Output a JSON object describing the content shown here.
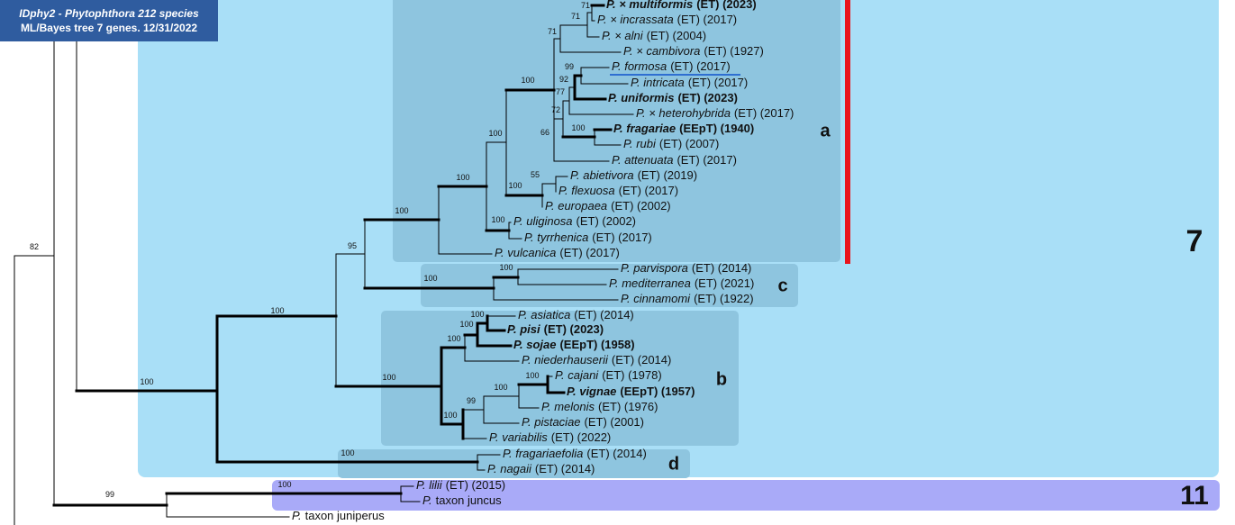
{
  "header": {
    "line1": "IDphy2 - Phytophthora 212 species",
    "line2": "ML/Bayes tree 7 genes. 12/31/2022"
  },
  "clades": {
    "major": [
      "7",
      "11"
    ],
    "sub": [
      "a",
      "c",
      "b",
      "d"
    ]
  },
  "taxa": [
    {
      "name": "P. × multiformis",
      "note": "(ET) (2023)",
      "bold": true
    },
    {
      "name": "P. × incrassata",
      "note": "(ET) (2017)"
    },
    {
      "name": "P. × alni",
      "note": "(ET) (2004)"
    },
    {
      "name": "P. × cambivora",
      "note": "(ET) (1927)"
    },
    {
      "name": "P. formosa",
      "note": "(ET) (2017)",
      "underline": true
    },
    {
      "name": "P. intricata",
      "note": "(ET) (2017)"
    },
    {
      "name": "P. uniformis",
      "note": "(ET) (2023)",
      "bold": true
    },
    {
      "name": "P. × heterohybrida",
      "note": "(ET) (2017)"
    },
    {
      "name": "P. fragariae",
      "note": "(EEpT) (1940)",
      "bold": true
    },
    {
      "name": "P. rubi",
      "note": "(ET) (2007)"
    },
    {
      "name": "P. attenuata",
      "note": "(ET) (2017)"
    },
    {
      "name": "P. abietivora",
      "note": "(ET) (2019)"
    },
    {
      "name": "P. flexuosa",
      "note": "(ET) (2017)"
    },
    {
      "name": "P. europaea",
      "note": "(ET) (2002)"
    },
    {
      "name": "P. uliginosa",
      "note": "(ET) (2002)"
    },
    {
      "name": "P. tyrrhenica",
      "note": "(ET) (2017)"
    },
    {
      "name": "P. vulcanica",
      "note": "(ET) (2017)"
    },
    {
      "name": "P. parvispora",
      "note": "(ET) (2014)"
    },
    {
      "name": "P. mediterranea",
      "note": "(ET) (2021)"
    },
    {
      "name": "P. cinnamomi",
      "note": "(ET) (1922)"
    },
    {
      "name": "P. asiatica",
      "note": "(ET) (2014)"
    },
    {
      "name": "P. pisi",
      "note": "(ET) (2023)",
      "bold": true
    },
    {
      "name": "P. sojae",
      "note": "(EEpT) (1958)",
      "bold": true
    },
    {
      "name": "P. niederhauserii",
      "note": "(ET) (2014)"
    },
    {
      "name": "P. cajani",
      "note": "(ET) (1978)"
    },
    {
      "name": "P. vignae",
      "note": "(EEpT) (1957)",
      "bold": true
    },
    {
      "name": "P. melonis",
      "note": "(ET) (1976)"
    },
    {
      "name": "P. pistaciae",
      "note": "(ET) (2001)"
    },
    {
      "name": "P. variabilis",
      "note": "(ET) (2022)"
    },
    {
      "name": "P. fragariaefolia",
      "note": "(ET) (2014)"
    },
    {
      "name": "P. nagaii",
      "note": "(ET) (2014)"
    },
    {
      "name": "P. lilii",
      "note": "(ET) (2015)"
    },
    {
      "name": "P.",
      "note": "taxon juncus"
    },
    {
      "name": "P.",
      "note": "taxon juniperus"
    }
  ],
  "support_values": [
    "71",
    "71",
    "71",
    "100",
    "99",
    "92",
    "77",
    "72",
    "100",
    "66",
    "100",
    "100",
    "55",
    "100",
    "100",
    "100",
    "95",
    "100",
    "100",
    "100",
    "100",
    "100",
    "100",
    "100",
    "100",
    "99",
    "100",
    "100",
    "100",
    "100",
    "100",
    "99",
    "82"
  ]
}
